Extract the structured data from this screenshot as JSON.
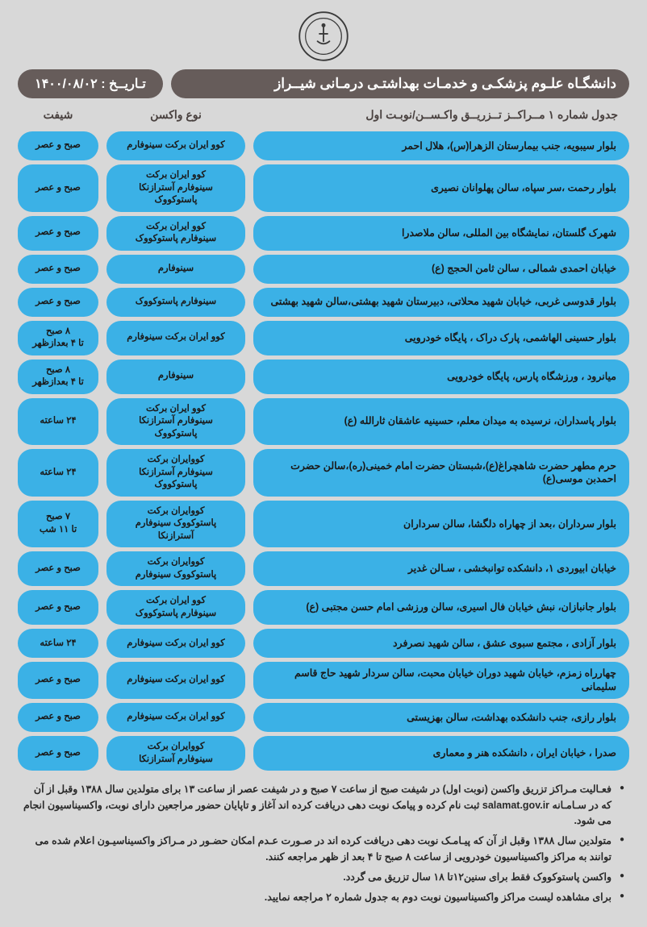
{
  "colors": {
    "page_bg": "#d8d8d8",
    "header_bg": "#665c5a",
    "header_text": "#ffffff",
    "cell_bg": "#3bb1e6",
    "cell_text": "#1a1a1a",
    "note_text": "#2a2a2a"
  },
  "header": {
    "title": "دانشگـاه علـوم پزشکـی و خدمـات بهداشتـی درمـانی شیــراز",
    "date_label": "تـاریــخ :   ۱۴۰۰/۰۸/۰۲"
  },
  "subheader": {
    "title": "جدول شماره ۱ مــراکــز تــزریــق  واکـســن/نوبـت اول",
    "vaccine_col": "نوع واکسن",
    "shift_col": "شیفت"
  },
  "rows": [
    {
      "location": "بلوار سیبویه، جنب بیمارستان الزهرا(س)، هلال احمر",
      "vaccine": "کوو ایران برکت   سینوفارم",
      "shift": "صبح و عصر"
    },
    {
      "location": "بلوار رحمت ،سر سپاه، سالن پهلوانان نصیری",
      "vaccine": "کوو ایران برکت\nسینوفارم  آسترازنکا  پاستوکووک",
      "shift": "صبح و عصر"
    },
    {
      "location": "شهرک گلستان، نمایشگاه بین المللی، سالن ملاصدرا",
      "vaccine": "کوو ایران برکت\nسینوفارم  پاستوکووک",
      "shift": "صبح و عصر"
    },
    {
      "location": "خیابان احمدی شمالی ، سالن ثامن الحجج (ع)",
      "vaccine": "سینوفارم",
      "shift": "صبح و عصر"
    },
    {
      "location": "بلوار قدوسی غربی، خیابان شهید محلاتی، دبیرستان شهید بهشتی،سالن شهید بهشتی",
      "vaccine": "سینوفارم  پاستوکووک",
      "shift": "صبح و عصر"
    },
    {
      "location": "بلوار حسینی الهاشمی، پارک دراک ، پایگاه خودرویی",
      "vaccine": "کوو ایران برکت  سینوفارم",
      "shift": "۸ صبح\nتا ۴ بعدازظهر"
    },
    {
      "location": "میانرود ، ورزشگاه پارس، پایگاه خودرویی",
      "vaccine": "سینوفارم",
      "shift": "۸ صبح\nتا ۴ بعدازظهر"
    },
    {
      "location": "بلوار پاسداران، نرسیده به میدان معلم، حسینیه عاشقان ثارالله (ع)",
      "vaccine": "کوو ایران برکت\nسینوفارم  آسترازنکا  پاستوکووک",
      "shift": "۲۴ ساعته"
    },
    {
      "location": "حرم مطهر حضرت شاهچراغ(ع)،شبستان حضرت امام خمینی(ره)،سالن حضرت احمدبن موسی(ع)",
      "vaccine": "کووایران برکت\nسینوفارم  آسترازنکا پاستوکووک",
      "shift": "۲۴ ساعته"
    },
    {
      "location": "بلوار سرداران ،بعد از چهاراه دلگشا، سالن سرداران",
      "vaccine": "کووایران برکت\nپاستوکووک  سینوفارم  آسترازنکا",
      "shift": "۷ صبح\nتا ۱۱ شب"
    },
    {
      "location": "خیابان ابیوردی ۱، دانشکده توانبخشی ، سـالن غدیر",
      "vaccine": "کووایران برکت\nپاستوکووک  سینوفارم",
      "shift": "صبح و عصر"
    },
    {
      "location": "بلوار جانبازان، نبش خیابان فال اسیری، سالن ورزشی امام حسن مجتبی (ع)",
      "vaccine": "کوو ایران برکت\nسینوفارم  پاستوکووک",
      "shift": "صبح و عصر"
    },
    {
      "location": "بلوار آزادی ، مجتمع سبوی عشق ، سالن شهید نصرفرد",
      "vaccine": "کوو ایران برکت  سینوفارم",
      "shift": "۲۴ ساعته"
    },
    {
      "location": "چهارراه زمزم، خیابان شهید دوران خیابان  محبت، سالن سردار  شهید حاج قاسم سلیمانی",
      "vaccine": "کوو ایران برکت  سینوفارم",
      "shift": "صبح و عصر"
    },
    {
      "location": "بلوار رازی، جنب دانشکده بهداشت، سالن بهزیستی",
      "vaccine": "کوو ایران برکت  سینوفارم",
      "shift": "صبح و عصر"
    },
    {
      "location": "صدرا ، خیابان ایران ، دانشکده هنر و معماری",
      "vaccine": "کووایران برکت\nسینوفارم  آسترازنکا",
      "shift": "صبح و عصر"
    }
  ],
  "notes": [
    "فعـالیت مـراکز تزریق واکسن (نوبت اول) در شیفت صبح از ساعت ۷ صبح و در شیفت عصر از ساعت ۱۳  برای متولدین سال ۱۳۸۸ وقبل از آن که در سـامـانه salamat.gov.ir ثبت نام کرده و  پیامک  نوبت دهی دریافت کرده اند آغاز و تاپایان حضور مراجعین دارای نوبت، واکسیناسیون  انجام می شود.",
    "متولدین سال ۱۳۸۸ وقبل از آن که پیـامـک نوبت دهی دریافت کرده اند در صـورت عـدم امکان حضـور در مـراکز واکسیناسیـون اعلام شده  می توانند به مراکز واکسیناسیون خودرویی از ساعت ۸ صبح تا ۴ بعد از ظهر  مراجعه کنند.",
    "واکسن پاستوکووک فقط  برای سنین۱۲تا ۱۸ سال تزریق می گردد.",
    "برای مشاهده لیست مراکز واکسیناسیون نوبت دوم به جدول شماره ۲ مراجعه نمایید."
  ]
}
